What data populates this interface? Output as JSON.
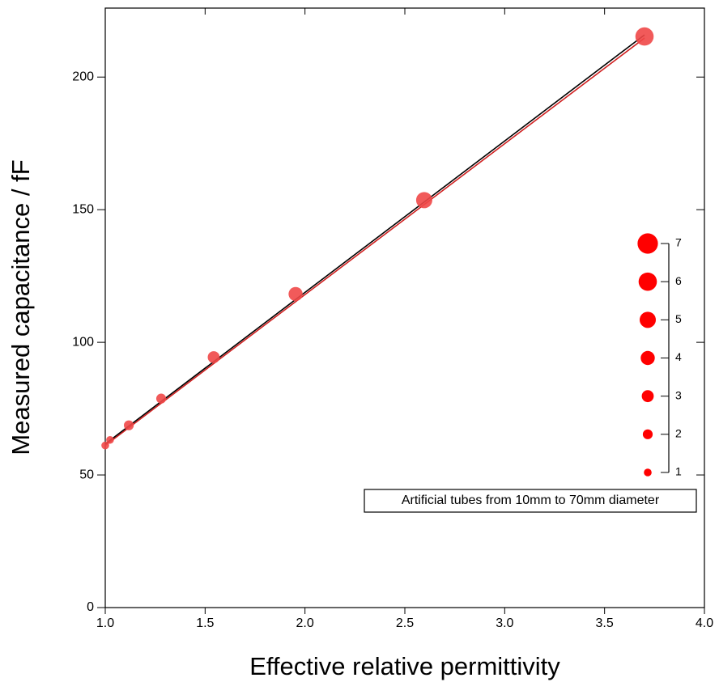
{
  "chart_data": {
    "type": "scatter",
    "x_label": "Effective relative permittivity",
    "y_label": "Measured capacitance / fF",
    "annotation": "Artificial tubes from 10mm to 70mm diameter",
    "xlim": [
      1,
      4
    ],
    "ylim": [
      0,
      226
    ],
    "xticks": [
      {
        "value": 1,
        "label": "1.0"
      },
      {
        "value": 1.5,
        "label": "1.5"
      },
      {
        "value": 2,
        "label": "2.0"
      },
      {
        "value": 2.5,
        "label": "2.5"
      },
      {
        "value": 3,
        "label": "3.0"
      },
      {
        "value": 3.5,
        "label": "3.5"
      },
      {
        "value": 4,
        "label": "4.0"
      }
    ],
    "yticks": [
      0,
      50,
      100,
      150,
      200
    ],
    "series": [
      {
        "color": "#f04848",
        "x": [
          1.0,
          1.024,
          1.118,
          1.28,
          1.543,
          1.953,
          2.597,
          3.7
        ],
        "values": [
          61.1,
          63.2,
          68.7,
          78.8,
          94.4,
          118.2,
          153.6,
          215.3
        ],
        "sizes": [
          1,
          1,
          2,
          2,
          3,
          4,
          5,
          6
        ]
      }
    ],
    "lines": [
      {
        "color": "#d02020",
        "x": [
          1.0,
          3.7
        ],
        "y": [
          61.1,
          214.7
        ]
      },
      {
        "color": "#000000",
        "x": [
          1.0,
          3.7
        ],
        "y": [
          61.7,
          215.9
        ]
      }
    ],
    "size_legend": {
      "color": "#ff0000",
      "sizes": [
        1,
        2,
        3,
        4,
        5,
        6,
        7
      ]
    }
  }
}
